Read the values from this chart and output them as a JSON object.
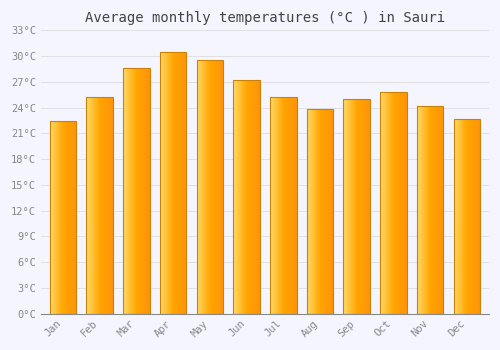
{
  "title": "Average monthly temperatures (°C ) in Sauri",
  "months": [
    "Jan",
    "Feb",
    "Mar",
    "Apr",
    "May",
    "Jun",
    "Jul",
    "Aug",
    "Sep",
    "Oct",
    "Nov",
    "Dec"
  ],
  "values": [
    22.5,
    25.2,
    28.6,
    30.5,
    29.5,
    27.2,
    25.2,
    23.8,
    25.0,
    25.8,
    24.2,
    22.7
  ],
  "bar_color_left": "#FFD966",
  "bar_color_center": "#FFA500",
  "bar_color_right": "#E8930A",
  "bar_edge_color": "#C8820A",
  "background_color": "#F5F5FF",
  "plot_bg_color": "#F5F5FF",
  "grid_color": "#DDDDDD",
  "ylim": [
    0,
    33
  ],
  "yticks": [
    0,
    3,
    6,
    9,
    12,
    15,
    18,
    21,
    24,
    27,
    30,
    33
  ],
  "ytick_labels": [
    "0°C",
    "3°C",
    "6°C",
    "9°C",
    "12°C",
    "15°C",
    "18°C",
    "21°C",
    "24°C",
    "27°C",
    "30°C",
    "33°C"
  ],
  "title_fontsize": 10,
  "tick_fontsize": 7.5,
  "font_family": "monospace",
  "title_color": "#444444",
  "tick_color": "#888888"
}
